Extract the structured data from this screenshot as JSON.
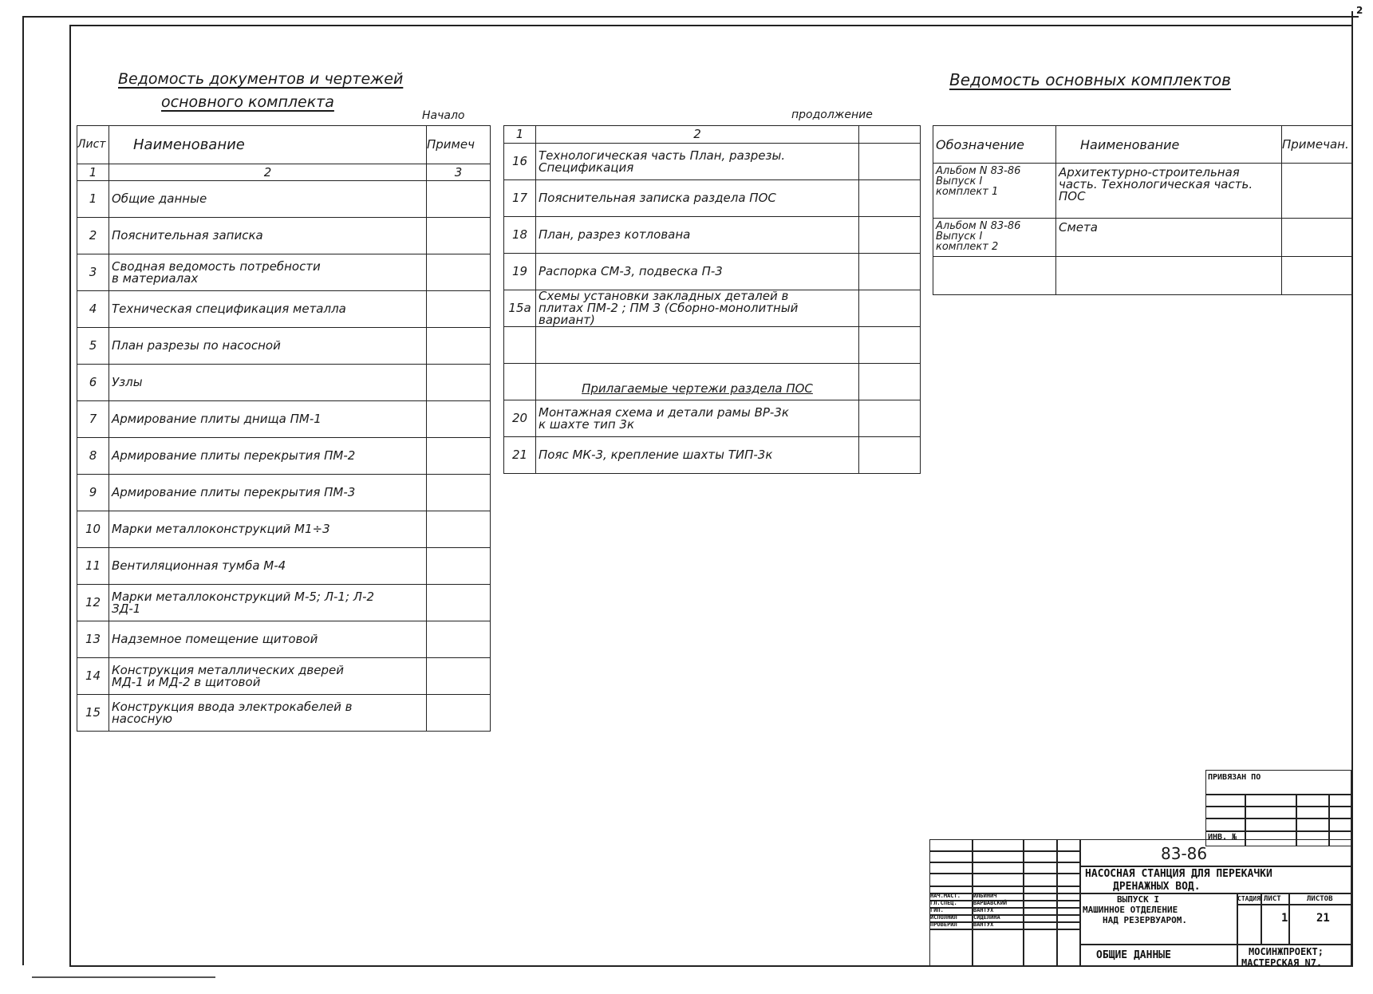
{
  "page_number": "2",
  "left_sheet": {
    "title_lines": [
      "Ведомость документов и чертежей",
      "основного комплекта"
    ],
    "marker": "Начало",
    "headers": [
      "Лист",
      "Наименование",
      "Примеч"
    ],
    "column_numbers": [
      "1",
      "2",
      "3"
    ],
    "rows": [
      {
        "n": "1",
        "name": "Общие данные"
      },
      {
        "n": "2",
        "name": "Пояснительная записка"
      },
      {
        "n": "3",
        "name": "Сводная ведомость потребности\nв материалах"
      },
      {
        "n": "4",
        "name": "Техническая спецификация металла"
      },
      {
        "n": "5",
        "name": "План разрезы по насосной"
      },
      {
        "n": "6",
        "name": "Узлы"
      },
      {
        "n": "7",
        "name": "Армирование плиты днища ПМ-1"
      },
      {
        "n": "8",
        "name": "Армирование плиты перекрытия ПМ-2"
      },
      {
        "n": "9",
        "name": "Армирование плиты перекрытия ПМ-3"
      },
      {
        "n": "10",
        "name": "Марки металлоконструкций М1÷3"
      },
      {
        "n": "11",
        "name": "Вентиляционная тумба М-4"
      },
      {
        "n": "12",
        "name": "Марки металлоконструкций М-5; Л-1; Л-2\nЗД-1"
      },
      {
        "n": "13",
        "name": "Надземное помещение щитовой"
      },
      {
        "n": "14",
        "name": "Конструкция металлических дверей\nМД-1 и МД-2 в щитовой"
      },
      {
        "n": "15",
        "name": "Конструкция ввода электрокабелей в\nнасосную"
      }
    ]
  },
  "middle_sheet": {
    "marker": "продолжение",
    "column_numbers": [
      "1",
      "2",
      ""
    ],
    "rows": [
      {
        "n": "16",
        "name": "Технологическая часть План, разрезы.\nСпецификация"
      },
      {
        "n": "17",
        "name": "Пояснительная записка раздела ПОС"
      },
      {
        "n": "18",
        "name": "План, разрез котлована"
      },
      {
        "n": "19",
        "name": "Распорка СМ-3, подвеска П-3"
      },
      {
        "n": "15а",
        "name": "Схемы установки закладных деталей в\nплитах ПМ-2 ; ПМ 3 (Сборно-монолитный вариант)"
      },
      {
        "n": "",
        "name": ""
      },
      {
        "n": "",
        "name": "Прилагаемые чертежи раздела ПОС",
        "section": true
      },
      {
        "n": "20",
        "name": "Монтажная схема и детали рамы ВР-3к\nк шахте тип 3к"
      },
      {
        "n": "21",
        "name": "Пояс МК-3, крепление шахты ТИП-3к"
      }
    ]
  },
  "right_sheet": {
    "title": "Ведомость основных комплектов",
    "headers": [
      "Обозначение",
      "Наименование",
      "Примечан."
    ],
    "rows": [
      {
        "code": "Альбом N 83-86\nВыпуск I\nкомплект 1",
        "name": "Архитектурно-строительная\nчасть. Технологическая часть.\nПОС",
        "note": ""
      },
      {
        "code": "Альбом N 83-86\nВыпуск I\nкомплект 2",
        "name": "Смета",
        "note": ""
      },
      {
        "code": "",
        "name": "",
        "note": ""
      }
    ]
  },
  "title_block": {
    "attached_to": "ПРИВЯЗАН ПО",
    "inv_no": "ИНВ. №",
    "project_code": "83-86",
    "project_title_lines": [
      "НАСОСНАЯ СТАНЦИЯ ДЛЯ ПЕРЕКАЧКИ",
      "ДРЕНАЖНЫХ ВОД."
    ],
    "issue_lines": [
      "ВЫПУСК I",
      "МАШИННОЕ ОТДЕЛЕНИЕ",
      "НАД РЕЗЕРВУАРОМ."
    ],
    "sheet_title": "ОБЩИЕ ДАННЫЕ",
    "stage_label": "СТАДИЯ",
    "sheet_label": "ЛИСТ",
    "sheets_label": "ЛИСТОВ",
    "stage": "",
    "sheet": "1",
    "sheets": "21",
    "organization_lines": [
      "МОСИНЖПРОЕКТ;",
      "МАСТЕРСКАЯ N7."
    ],
    "signatures": [
      {
        "role": "НАЧ.МАСТ.",
        "name": "ИЛЬИНИЧ"
      },
      {
        "role": "ГЛ.СПЕЦ.",
        "name": "ВАРШАВСКИЙ"
      },
      {
        "role": "ГИП.",
        "name": "ВАНТУХ"
      },
      {
        "role": "ИСПОЛНИЛ",
        "name": "СИДЕЛИНА"
      },
      {
        "role": "ПРОВЕРИЛ",
        "name": "ВАНТУХ"
      }
    ]
  }
}
